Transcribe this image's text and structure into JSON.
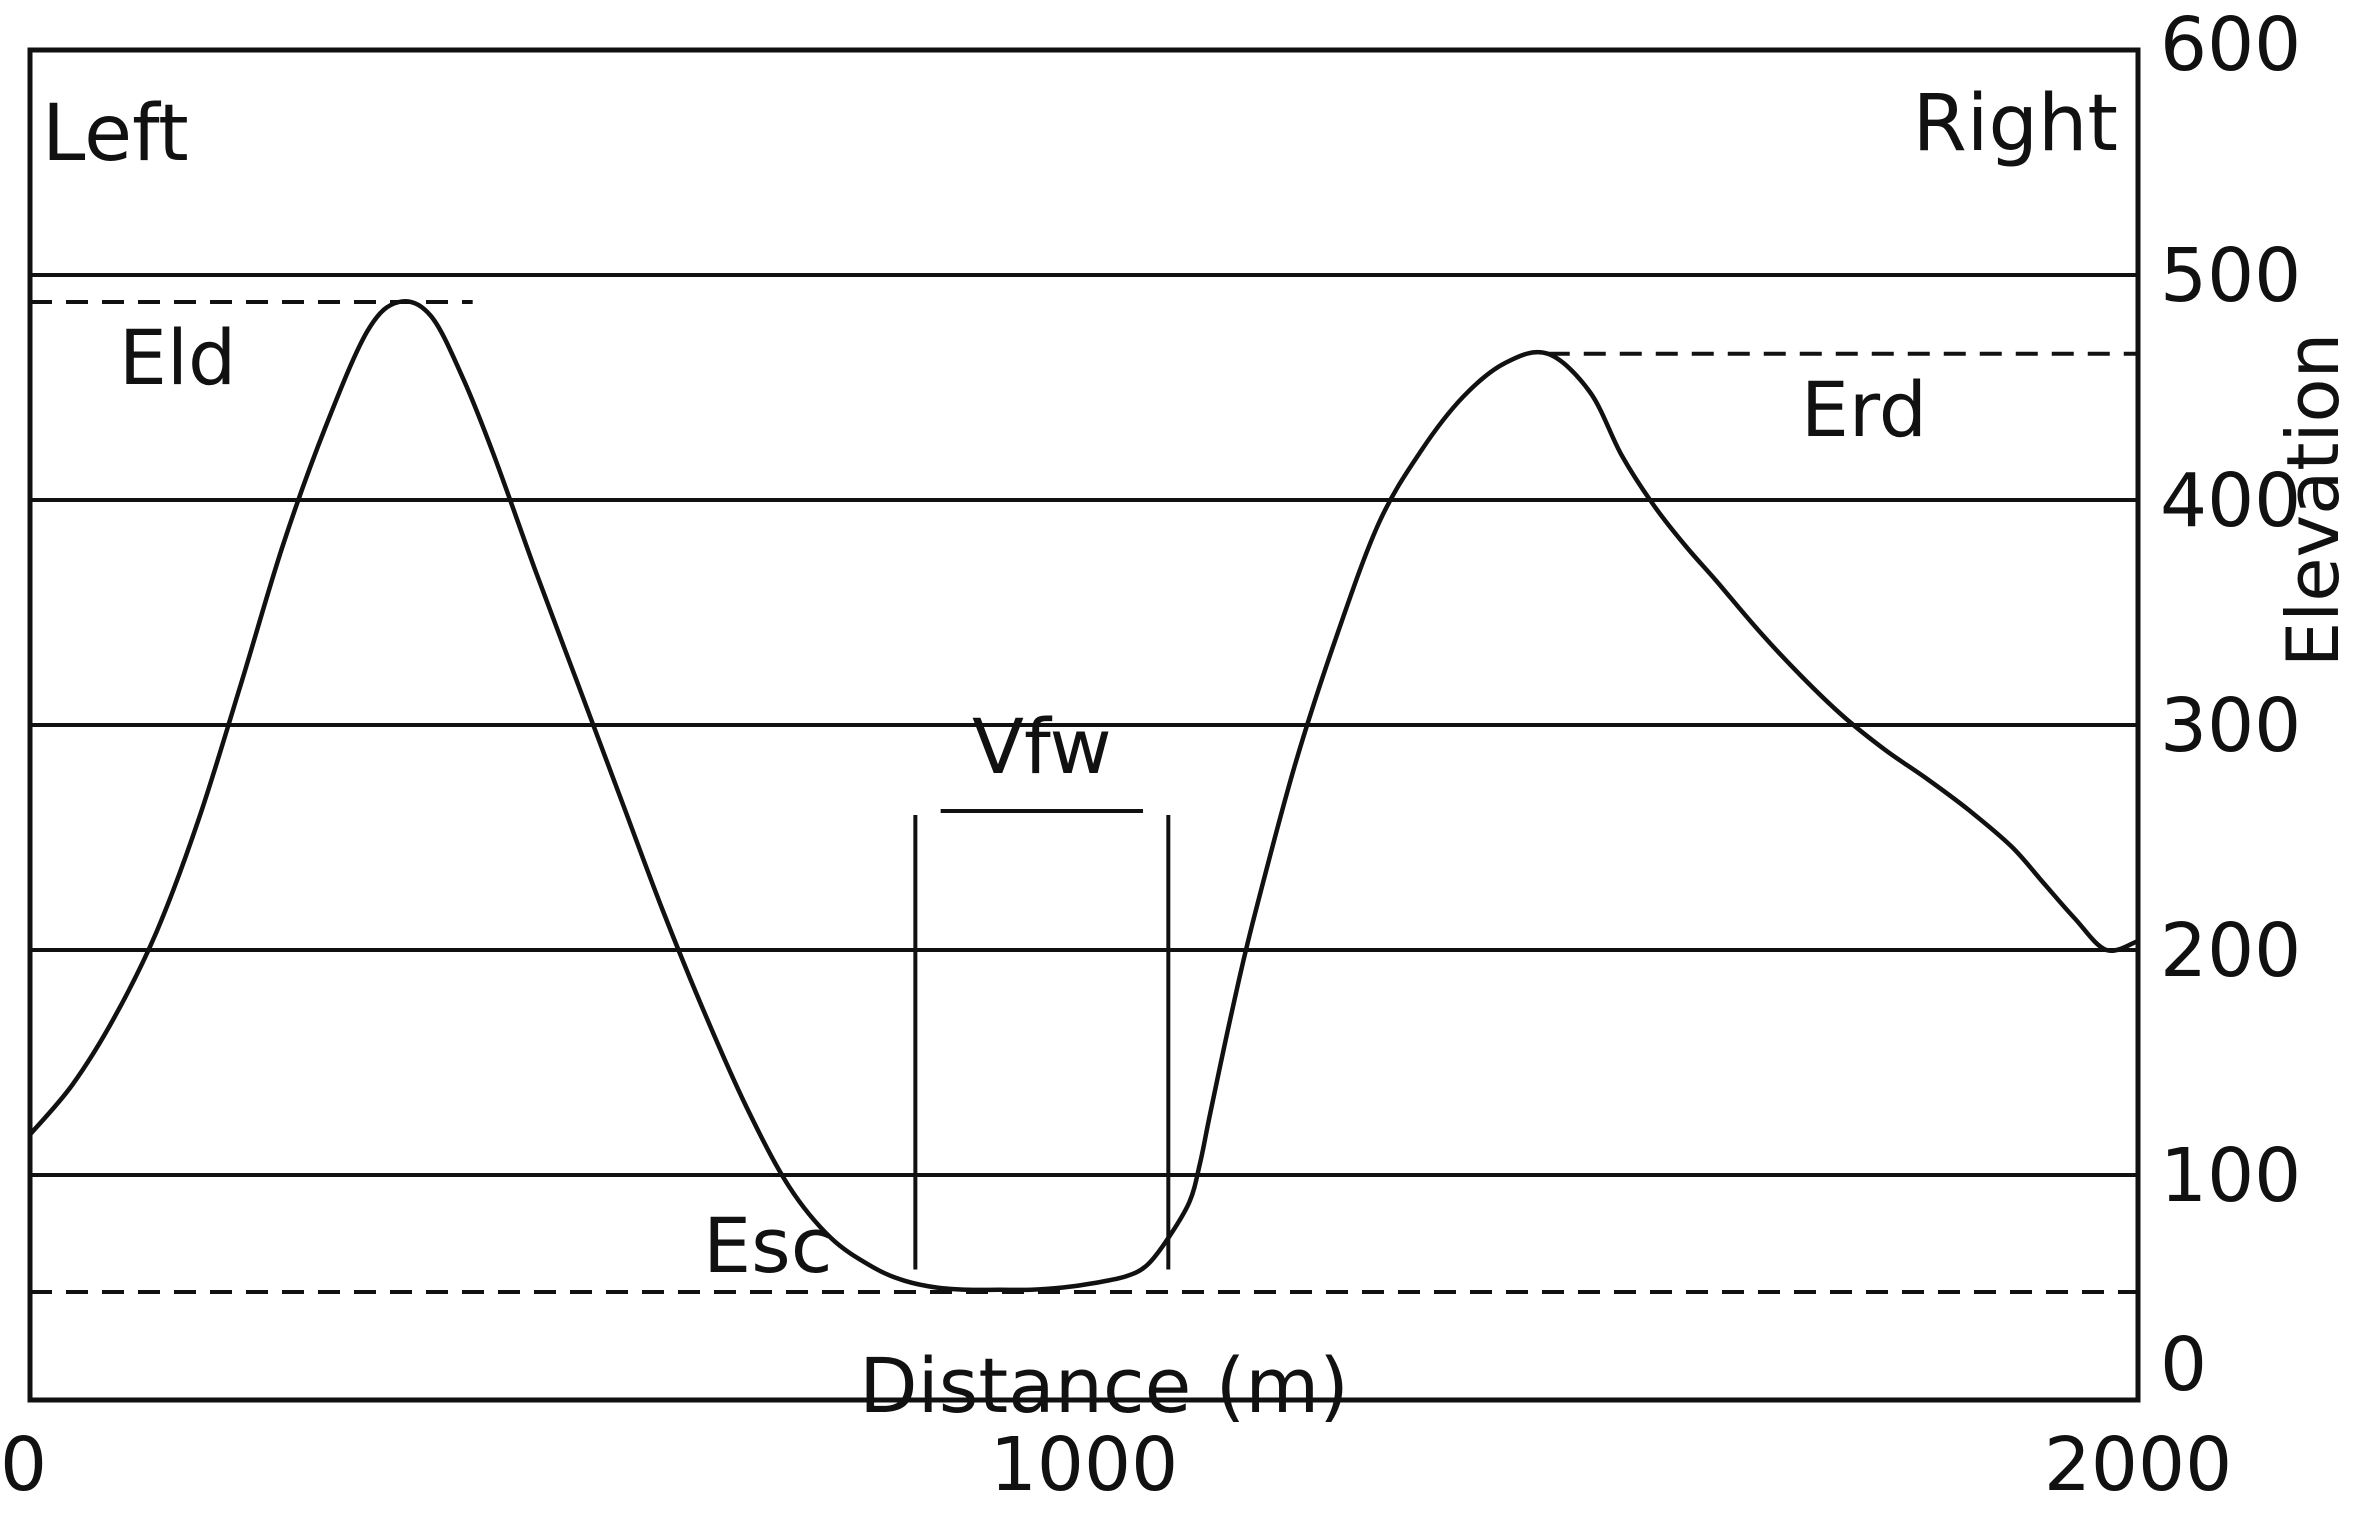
{
  "chart_data": {
    "type": "line",
    "corner_labels": {
      "left": "Left",
      "right": "Right"
    },
    "xlabel": "Distance (m)",
    "ylabel": "Elevation",
    "xlim": [
      0,
      2000
    ],
    "ylim": [
      0,
      600
    ],
    "x_ticks": [
      "0",
      "1000",
      "2000"
    ],
    "y_ticks": [
      "0",
      "100",
      "200",
      "300",
      "400",
      "500",
      "600"
    ],
    "y_tick_values": [
      0,
      100,
      200,
      300,
      400,
      500,
      600
    ],
    "gridlines_y": [
      100,
      200,
      300,
      400,
      500
    ],
    "grid": true,
    "line_color": "#111111",
    "series": [
      {
        "x": [
          0,
          40,
          80,
          120,
          160,
          200,
          240,
          280,
          320,
          350,
          380,
          410,
          440,
          480,
          520,
          560,
          600,
          640,
          680,
          720,
          760,
          800,
          830,
          860,
          890,
          920,
          950,
          980,
          1010,
          1040,
          1060,
          1080,
          1100,
          1110,
          1120,
          1140,
          1160,
          1200,
          1240,
          1280,
          1320,
          1360,
          1400,
          1440,
          1480,
          1510,
          1540,
          1570,
          1600,
          1640,
          1680,
          1720,
          1760,
          1800,
          1840,
          1880,
          1910,
          1940,
          1970,
          2000
        ],
        "y": [
          118,
          140,
          170,
          208,
          258,
          318,
          380,
          432,
          475,
          488,
          482,
          455,
          420,
          368,
          318,
          268,
          218,
          172,
          130,
          95,
          72,
          59,
          53,
          50,
          49,
          49,
          49,
          50,
          52,
          55,
          60,
          72,
          88,
          105,
          128,
          172,
          212,
          282,
          340,
          390,
          422,
          446,
          461,
          465,
          448,
          420,
          398,
          380,
          364,
          342,
          322,
          304,
          289,
          276,
          262,
          246,
          230,
          214,
          200,
          204
        ]
      }
    ],
    "annotations": [
      {
        "id": "eld",
        "text": "Eld",
        "reference_y": 488,
        "x_range": [
          0,
          420
        ]
      },
      {
        "id": "erd",
        "text": "Erd",
        "reference_y": 465,
        "x_range": [
          1440,
          2000
        ]
      },
      {
        "id": "esc",
        "text": "Esc",
        "reference_y": 48,
        "x_range": [
          0,
          2000
        ]
      },
      {
        "id": "vfw",
        "text": "Vfw",
        "x_range": [
          840,
          1080
        ],
        "bracket_top_y": 260,
        "bracket_bottom_y": 58
      }
    ]
  }
}
